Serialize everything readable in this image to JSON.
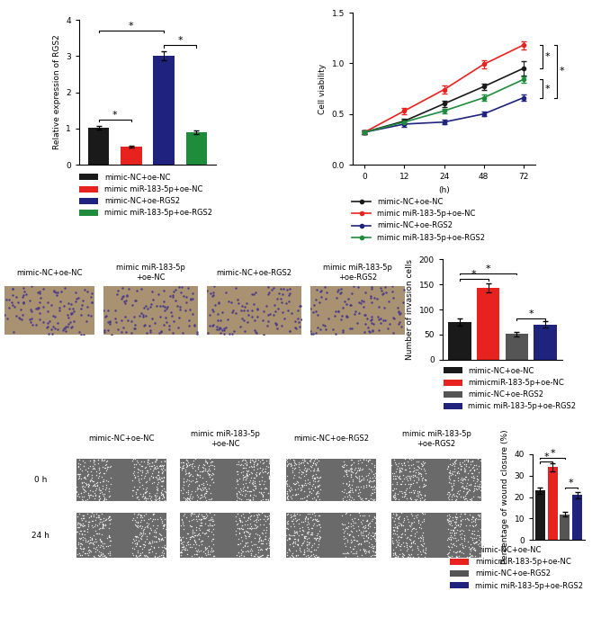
{
  "chart_data": [
    {
      "type": "bar",
      "ylabel": "Relative expression of RGS2",
      "ylim": [
        0,
        4
      ],
      "yticks": [
        0,
        1,
        2,
        3,
        4
      ],
      "legend": "below",
      "series": [
        {
          "name": "mimic-NC+oe-NC",
          "color": "#1a1a1a",
          "values": [
            1.03
          ],
          "errors": [
            0.05
          ]
        },
        {
          "name": "mimic miR-183-5p+oe-NC",
          "color": "#e8221f",
          "values": [
            0.5
          ],
          "errors": [
            0.03
          ]
        },
        {
          "name": "mimic-NC+oe-RGS2",
          "color": "#1f237e",
          "values": [
            3.0
          ],
          "errors": [
            0.13
          ]
        },
        {
          "name": "mimic miR-183-5p+oe-RGS2",
          "color": "#1e8c3a",
          "values": [
            0.9
          ],
          "errors": [
            0.05
          ]
        }
      ],
      "significance": [
        {
          "from": 0,
          "to": 1,
          "y": 1.25,
          "label": "*"
        },
        {
          "from": 0,
          "to": 2,
          "y": 3.7,
          "label": "*"
        },
        {
          "from": 2,
          "to": 3,
          "y": 3.3,
          "label": "*"
        }
      ]
    },
    {
      "type": "line",
      "xlabel": "(h)",
      "ylabel": "Cell viability",
      "categories": [
        "0",
        "12",
        "24",
        "48",
        "72"
      ],
      "ylim": [
        0,
        1.5
      ],
      "yticks": [
        {
          "value": 0,
          "label": "0.0"
        },
        {
          "value": 0.5,
          "label": "0.5"
        },
        {
          "value": 1.0,
          "label": "1.0"
        },
        {
          "value": 1.5,
          "label": "1.5"
        }
      ],
      "legend": "below",
      "series": [
        {
          "name": "mimic-NC+oe-NC",
          "color": "#1a1a1a",
          "marker": "o",
          "values": [
            0.32,
            0.43,
            0.6,
            0.77,
            0.95
          ],
          "errors": [
            0.02,
            0.02,
            0.03,
            0.03,
            0.07
          ]
        },
        {
          "name": "mimic miR-183-5p+oe-NC",
          "color": "#e8221f",
          "marker": "o",
          "values": [
            0.32,
            0.53,
            0.74,
            0.99,
            1.18
          ],
          "errors": [
            0.02,
            0.03,
            0.04,
            0.04,
            0.04
          ]
        },
        {
          "name": "mimic-NC+oe-RGS2",
          "color": "#1f237e",
          "marker": "o",
          "values": [
            0.32,
            0.4,
            0.42,
            0.5,
            0.66
          ],
          "errors": [
            0.02,
            0.03,
            0.02,
            0.02,
            0.03
          ]
        },
        {
          "name": "mimic miR-183-5p+oe-RGS2",
          "color": "#1e8c3a",
          "marker": "o",
          "values": [
            0.32,
            0.42,
            0.53,
            0.66,
            0.84
          ],
          "errors": [
            0.02,
            0.02,
            0.02,
            0.03,
            0.03
          ]
        }
      ],
      "significance": [
        {
          "from": 1.18,
          "to": 0.95,
          "label": "*"
        },
        {
          "from": 0.84,
          "to": 0.66,
          "label": "*"
        },
        {
          "from": 1.18,
          "to": 0.66,
          "label": "*"
        }
      ]
    },
    {
      "type": "bar",
      "ylabel": "Number of invasion cells",
      "ylim": [
        0,
        200
      ],
      "yticks": [
        0,
        50,
        100,
        150,
        200
      ],
      "legend": "below",
      "series": [
        {
          "name": "mimic-NC+oe-NC",
          "color": "#1a1a1a",
          "values": [
            75
          ],
          "errors": [
            7
          ]
        },
        {
          "name": "mimicmiR-183-5p+oe-NC",
          "color": "#e8221f",
          "values": [
            143
          ],
          "errors": [
            9
          ]
        },
        {
          "name": "mimic-NC+oe-RGS2",
          "color": "#555555",
          "values": [
            51
          ],
          "errors": [
            4
          ]
        },
        {
          "name": "mimic miR-183-5p+oe-RGS2",
          "color": "#1f237e",
          "values": [
            70
          ],
          "errors": [
            6
          ]
        }
      ],
      "significance": [
        {
          "from": 0,
          "to": 1,
          "y": 160,
          "label": "*"
        },
        {
          "from": 0,
          "to": 2,
          "y": 172,
          "label": "*"
        },
        {
          "from": 2,
          "to": 3,
          "y": 82,
          "label": "*"
        }
      ]
    },
    {
      "type": "bar",
      "ylabel": "Percentage of wound closure (%)",
      "ylim": [
        0,
        40
      ],
      "yticks": [
        0,
        10,
        20,
        30,
        40
      ],
      "legend": "below",
      "series": [
        {
          "name": "mimic-NC+oe-NC",
          "color": "#1a1a1a",
          "values": [
            23
          ],
          "errors": [
            1.5
          ]
        },
        {
          "name": "mimicmiR-183-5p+oe-NC",
          "color": "#e8221f",
          "values": [
            34
          ],
          "errors": [
            2
          ]
        },
        {
          "name": "mimic-NC+oe-RGS2",
          "color": "#555555",
          "values": [
            12
          ],
          "errors": [
            1
          ]
        },
        {
          "name": "mimic miR-183-5p+oe-RGS2",
          "color": "#1f237e",
          "values": [
            21
          ],
          "errors": [
            1.5
          ]
        }
      ],
      "significance": [
        {
          "from": 0,
          "to": 1,
          "y": 36.5,
          "label": "*"
        },
        {
          "from": 0,
          "to": 2,
          "y": 38.5,
          "label": "*"
        },
        {
          "from": 2,
          "to": 3,
          "y": 24.5,
          "label": "*"
        }
      ]
    }
  ],
  "images": {
    "invasion": {
      "labels": [
        "mimic-NC+oe-NC",
        "mimic miR-183-5p\n+oe-NC",
        "mimic-NC+oe-RGS2",
        "mimic miR-183-5p\n+oe-RGS2"
      ]
    },
    "wound": {
      "labels": [
        "mimic-NC+oe-NC",
        "mimic miR-183-5p\n+oe-NC",
        "mimic-NC+oe-RGS2",
        "mimic miR-183-5p\n+oe-RGS2"
      ],
      "rows": [
        "0 h",
        "24 h"
      ]
    }
  }
}
